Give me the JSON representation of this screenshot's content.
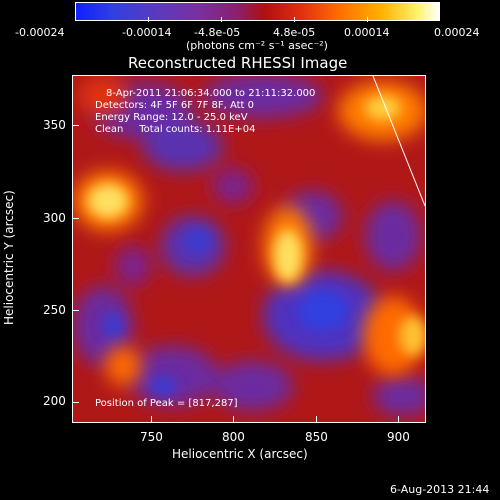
{
  "colorbar": {
    "tick_labels": [
      "-0.00024",
      "-0.00014",
      "-4.8e-05",
      "4.8e-05",
      "0.00014",
      "0.00024"
    ],
    "unit_label": "(photons cm⁻² s⁻¹ asec⁻²)"
  },
  "title": "Reconstructed RHESSI Image",
  "info": {
    "time_range": "8-Apr-2011 21:06:34.000 to 21:11:32.000",
    "detectors": "Detectors: 4F 5F 6F 7F 8F, Att 0",
    "energy": "Energy Range: 12.0 - 25.0 keV",
    "clean": "Clean     Total counts: 1.11E+04"
  },
  "peak": "Position of Peak = [817,287]",
  "axes": {
    "xlabel": "Heliocentric X (arcsec)",
    "ylabel": "Heliocentric Y (arcsec)",
    "x_ticks": [
      "750",
      "800",
      "850",
      "900"
    ],
    "y_ticks": [
      "200",
      "250",
      "300",
      "350"
    ],
    "x_range": [
      717,
      908
    ],
    "y_range": [
      182,
      376
    ]
  },
  "footer_date": "6-Aug-2013 21:44",
  "colors": {
    "background": "#000000",
    "text": "#ffffff"
  }
}
